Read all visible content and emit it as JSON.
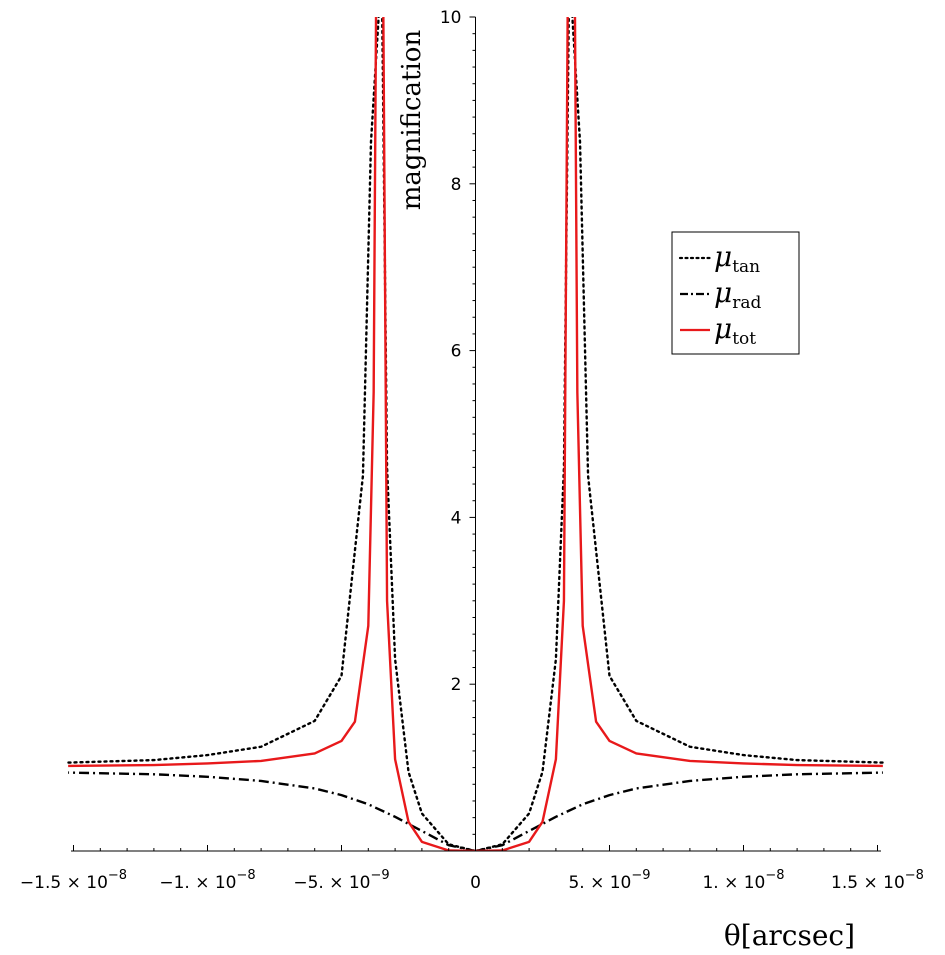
{
  "chart_data": {
    "type": "line",
    "xlabel": "θ[arcsec]",
    "ylabel": "magnification",
    "xlim": [
      -1.52e-08,
      1.52e-08
    ],
    "ylim": [
      0,
      10
    ],
    "x_ticks": [
      {
        "value": -1.5e-08,
        "mantissa": "−1.5",
        "exponent": "−8"
      },
      {
        "value": -1e-08,
        "mantissa": "−1.",
        "exponent": "−8"
      },
      {
        "value": -5e-09,
        "mantissa": "−5.",
        "exponent": "−9"
      },
      {
        "value": 0,
        "mantissa": "0",
        "exponent": ""
      },
      {
        "value": 5e-09,
        "mantissa": "5.",
        "exponent": "−9"
      },
      {
        "value": 1e-08,
        "mantissa": "1.",
        "exponent": "−8"
      },
      {
        "value": 1.5e-08,
        "mantissa": "1.5",
        "exponent": "−8"
      }
    ],
    "y_ticks": [
      2,
      4,
      6,
      8,
      10
    ],
    "critical_radius": 3.6e-09,
    "grid": false,
    "legend_position": "top-right",
    "series": [
      {
        "name": "μ_tan",
        "label_main": "μ",
        "label_sub": "tan",
        "style": "dotted",
        "color": "#000000",
        "x": [
          0,
          1e-09,
          2e-09,
          2.5e-09,
          3e-09,
          3.3e-09,
          3.5e-09,
          3.9e-09,
          4.2e-09,
          5e-09,
          6e-09,
          8e-09,
          1e-08,
          1.2e-08,
          1.52e-08
        ],
        "values": [
          0.0,
          0.08,
          0.45,
          0.95,
          2.3,
          4.6,
          11.0,
          8.5,
          4.5,
          2.1,
          1.56,
          1.25,
          1.15,
          1.09,
          1.06
        ]
      },
      {
        "name": "μ_rad",
        "label_main": "μ",
        "label_sub": "rad",
        "style": "dashdot",
        "color": "#000000",
        "x": [
          0,
          1e-09,
          2e-09,
          3e-09,
          4e-09,
          5e-09,
          6e-09,
          8e-09,
          1e-08,
          1.2e-08,
          1.52e-08
        ],
        "values": [
          0.0,
          0.07,
          0.24,
          0.41,
          0.56,
          0.67,
          0.75,
          0.84,
          0.89,
          0.92,
          0.94
        ]
      },
      {
        "name": "μ_tot",
        "label_main": "μ",
        "label_sub": "tot",
        "style": "solid",
        "color": "#e8191b",
        "x": [
          0,
          1e-09,
          2e-09,
          2.5e-09,
          3e-09,
          3.3e-09,
          3.45e-09,
          3.7e-09,
          3.8e-09,
          4e-09,
          4.5e-09,
          5e-09,
          6e-09,
          8e-09,
          1e-08,
          1.2e-08,
          1.52e-08
        ],
        "values": [
          0.0,
          0.006,
          0.11,
          0.35,
          1.1,
          3.0,
          11.0,
          11.0,
          5.5,
          2.7,
          1.55,
          1.32,
          1.17,
          1.08,
          1.05,
          1.03,
          1.02
        ]
      }
    ]
  }
}
